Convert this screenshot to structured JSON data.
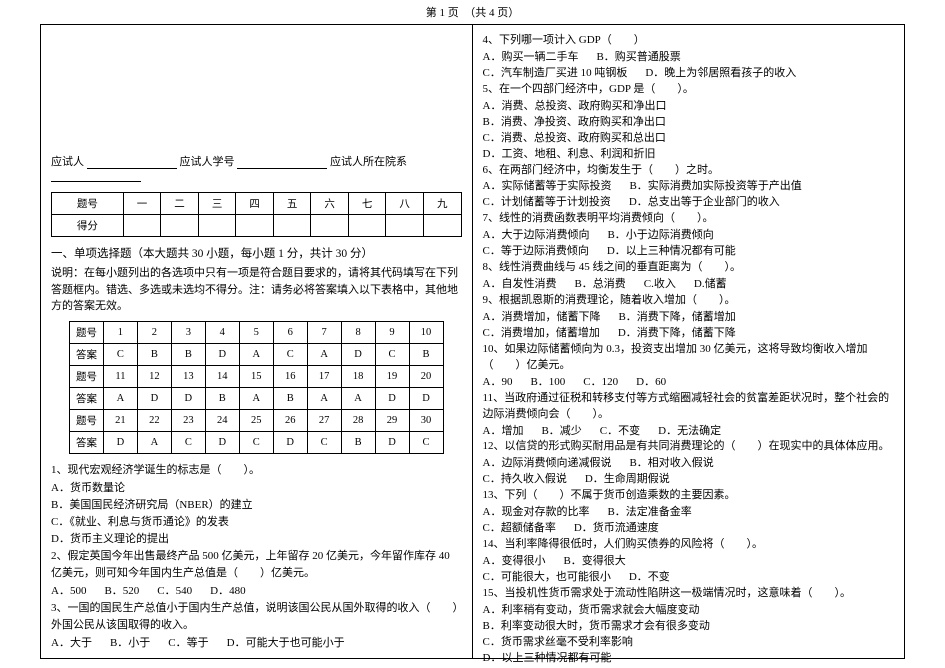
{
  "header": {
    "page_label": "第 1 页　（共 4 页）"
  },
  "student": {
    "name_label": "应试人",
    "id_label": "应试人学号",
    "dept_label": "应试人所在院系"
  },
  "score_table": {
    "row_labels": [
      "题号",
      "得分"
    ],
    "cols": [
      "一",
      "二",
      "三",
      "四",
      "五",
      "六",
      "七",
      "八",
      "九"
    ]
  },
  "section1": {
    "title": "一、单项选择题（本大题共 30 小题，每小题 1 分，共计 30 分）",
    "instructions": "说明：在每小题列出的各选项中只有一项是符合题目要求的，请将其代码填写在下列答题框内。错选、多选或未选均不得分。注：请务必将答案填入以下表格中，其他地方的答案无效。"
  },
  "answer_grid": {
    "row_label": "题号",
    "ans_label": "答案",
    "r1_nums": [
      "1",
      "2",
      "3",
      "4",
      "5",
      "6",
      "7",
      "8",
      "9",
      "10"
    ],
    "r1_ans": [
      "C",
      "B",
      "B",
      "D",
      "A",
      "C",
      "A",
      "D",
      "C",
      "B"
    ],
    "r2_nums": [
      "11",
      "12",
      "13",
      "14",
      "15",
      "16",
      "17",
      "18",
      "19",
      "20"
    ],
    "r2_ans": [
      "A",
      "D",
      "D",
      "B",
      "A",
      "B",
      "A",
      "A",
      "D",
      "D"
    ],
    "r3_nums": [
      "21",
      "22",
      "23",
      "24",
      "25",
      "26",
      "27",
      "28",
      "29",
      "30"
    ],
    "r3_ans": [
      "D",
      "A",
      "C",
      "D",
      "C",
      "D",
      "C",
      "B",
      "D",
      "C"
    ]
  },
  "left_questions": {
    "q1": "1、现代宏观经济学诞生的标志是（　　）。",
    "q1a": "A．货币数量论",
    "q1b": "B．美国国民经济研究局（NBER）的建立",
    "q1c": "C．《就业、利息与货币通论》的发表",
    "q1d": "D．货币主义理论的提出",
    "q2": "2、假定英国今年出售最终产品 500 亿美元，上年留存 20 亿美元，今年留作库存 40 亿美元，则可知今年国内生产总值是（　　）亿美元。",
    "q2a": "A．500",
    "q2b": "B．520",
    "q2c": "C．540",
    "q2d": "D．480",
    "q3": "3、一国的国民生产总值小于国内生产总值，说明该国公民从国外取得的收入（　　）外国公民从该国取得的收入。",
    "q3a": "A．大于",
    "q3b": "B．小于",
    "q3c": "C．等于",
    "q3d": "D．可能大于也可能小于"
  },
  "right_questions": {
    "q4": "4、下列哪一项计入 GDP（　　）",
    "q4a": "A．购买一辆二手车",
    "q4b": "B．购买普通股票",
    "q4c": "C．汽车制造厂买进 10 吨钢板",
    "q4d": "D．晚上为邻居照看孩子的收入",
    "q5": "5、在一个四部门经济中，GDP 是（　　）。",
    "q5a": "A．消费、总投资、政府购买和净出口",
    "q5b": "B．消费、净投资、政府购买和净出口",
    "q5c": "C．消费、总投资、政府购买和总出口",
    "q5d": "D．工资、地租、利息、利润和折旧",
    "q6": "6、在两部门经济中，均衡发生于（　　）之时。",
    "q6a": "A．实际储蓄等于实际投资",
    "q6b": "B．实际消费加实际投资等于产出值",
    "q6c": "C．计划储蓄等于计划投资",
    "q6d": "D．总支出等于企业部门的收入",
    "q7": "7、线性的消费函数表明平均消费倾向（　　）。",
    "q7a": "A．大于边际消费倾向",
    "q7b": "B．小于边际消费倾向",
    "q7c": "C．等于边际消费倾向",
    "q7d": "D．以上三种情况都有可能",
    "q8": "8、线性消费曲线与 45 线之间的垂直距离为（　　）。",
    "q8a": "A．自发性消费",
    "q8b": "B．总消费",
    "q8c": "C.收入",
    "q8d": "D.储蓄",
    "q9": "9、根据凯恩斯的消费理论，随着收入增加（　　）。",
    "q9a": "A．消费增加，储蓄下降",
    "q9b": "B．消费下降，储蓄增加",
    "q9c": "C．消费增加，储蓄增加",
    "q9d": "D．消费下降，储蓄下降",
    "q10": "10、如果边际储蓄倾向为 0.3，投资支出增加 30 亿美元，这将导致均衡收入增加（　　）亿美元。",
    "q10a": "A．90",
    "q10b": "B．100",
    "q10c": "C．120",
    "q10d": "D．60",
    "q11": "11、当政府通过征税和转移支付等方式缩圈减轻社会的贫富差距状况时，整个社会的边际消费倾向会（　　）。",
    "q11a": "A．增加",
    "q11b": "B．减少",
    "q11c": "C．不变",
    "q11d": "D．无法确定",
    "q12": "12、以信贷的形式购买耐用品是有共同消费理论的（　　）在现实中的具体体应用。",
    "q12a": "A．边际消费倾向递减假说",
    "q12b": "B．相对收入假说",
    "q12c": "C．持久收入假说",
    "q12d": "D．生命周期假说",
    "q13": "13、下列（　　）不属于货币创造乘数的主要因素。",
    "q13a": "A．现金对存款的比率",
    "q13b": "B．法定准备金率",
    "q13c": "C．超额储备率",
    "q13d": "D．货币流通速度",
    "q14": "14、当利率降得很低时，人们购买债券的风险将（　　）。",
    "q14a": "A．变得很小",
    "q14b": "B．变得很大",
    "q14c": "C．可能很大，也可能很小",
    "q14d": "D．不变",
    "q15": "15、当投机性货币需求处于流动性陷阱这一极端情况时，这意味着（　　）。",
    "q15a": "A．利率稍有变动，货币需求就会大幅度变动",
    "q15b": "B．利率变动很大时，货币需求才会有很多变动",
    "q15c": "C．货币需求丝毫不受利率影响",
    "q15d": "D．以上三种情况都有可能"
  }
}
